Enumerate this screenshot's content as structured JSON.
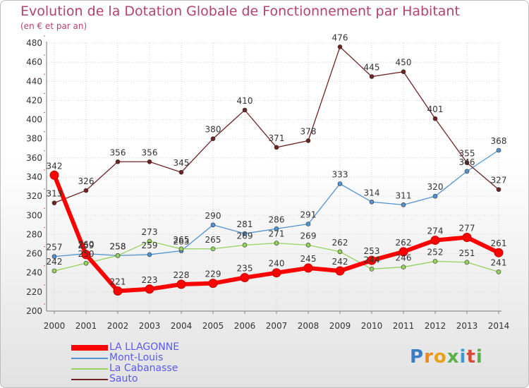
{
  "title": "Evolution de la Dotation Globale de Fonctionnement par Habitant",
  "subtitle": "(en € et par an)",
  "logo": {
    "text": "Proxiti",
    "letter_colors": [
      "#3a7ec6",
      "#e88b1a",
      "#e8a21a",
      "#5ab04a",
      "#3a9bd6",
      "#d64a3a",
      "#5ab04a"
    ]
  },
  "chart_data": {
    "type": "line",
    "title": "Evolution de la Dotation Globale de Fonctionnement par Habitant",
    "subtitle": "(en € et par an)",
    "xlabel": "",
    "ylabel": "",
    "x": [
      "2000",
      "2001",
      "2002",
      "2003",
      "2004",
      "2005",
      "2006",
      "2007",
      "2008",
      "2009",
      "2010",
      "2011",
      "2012",
      "2013",
      "2014"
    ],
    "ylim": [
      200,
      480
    ],
    "yticks": [
      "200",
      "220",
      "240",
      "260",
      "280",
      "300",
      "320",
      "340",
      "360",
      "380",
      "400",
      "420",
      "440",
      "460",
      "480"
    ],
    "grid": true,
    "legend_position": "bottom-left",
    "series": [
      {
        "name": "LA LLAGONNE",
        "color": "#ff0000",
        "emphasis": true,
        "values": [
          342,
          259,
          221,
          223,
          228,
          229,
          235,
          240,
          245,
          242,
          253,
          262,
          274,
          277,
          261
        ],
        "labels": [
          "342",
          "259",
          "221",
          "223",
          "228",
          "229",
          "235",
          "240",
          "245",
          "242",
          "253",
          "262",
          "274",
          "277",
          "261"
        ]
      },
      {
        "name": "Mont-Louis",
        "color": "#4f93d2",
        "values": [
          257,
          260,
          258,
          259,
          263,
          290,
          281,
          286,
          291,
          333,
          314,
          311,
          320,
          346,
          368
        ],
        "labels": [
          "257",
          "260",
          "258",
          "259",
          "263",
          "290",
          "281",
          "286",
          "291",
          "333",
          "314",
          "311",
          "320",
          "346",
          "368"
        ]
      },
      {
        "name": "La Cabanasse",
        "color": "#94d25b",
        "values": [
          242,
          250,
          258,
          273,
          265,
          265,
          269,
          271,
          269,
          262,
          244,
          246,
          252,
          251,
          241
        ],
        "labels": [
          "242",
          "250",
          "258",
          "273",
          "265",
          "265",
          "269",
          "271",
          "269",
          "262",
          "244",
          "246",
          "252",
          "251",
          "241"
        ]
      },
      {
        "name": "Sauto",
        "color": "#6e2222",
        "values": [
          313,
          326,
          356,
          356,
          345,
          380,
          410,
          371,
          378,
          476,
          445,
          450,
          401,
          355,
          327
        ],
        "labels": [
          "313",
          "326",
          "356",
          "356",
          "345",
          "380",
          "410",
          "371",
          "378",
          "476",
          "445",
          "450",
          "401",
          "355",
          "327"
        ]
      }
    ]
  }
}
